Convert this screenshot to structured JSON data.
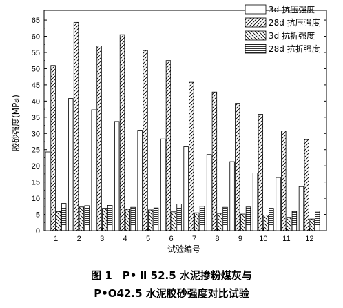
{
  "chart_data": {
    "type": "bar",
    "categories": [
      "1",
      "2",
      "3",
      "4",
      "5",
      "6",
      "7",
      "8",
      "9",
      "10",
      "11",
      "12"
    ],
    "series": [
      {
        "name": "3d 抗压强度",
        "pattern": "none",
        "values": [
          24.3,
          40.8,
          37.3,
          33.7,
          31.0,
          28.3,
          25.9,
          23.5,
          21.3,
          17.8,
          16.4,
          13.6
        ]
      },
      {
        "name": "28d 抗压强度",
        "pattern": "forward-hatch",
        "values": [
          51.0,
          64.3,
          57.0,
          60.5,
          55.6,
          52.5,
          45.8,
          42.8,
          39.3,
          35.9,
          30.8,
          28.1
        ]
      },
      {
        "name": "3d 抗折强度",
        "pattern": "back-hatch",
        "values": [
          5.9,
          7.3,
          6.9,
          6.6,
          6.4,
          5.8,
          5.5,
          5.3,
          5.1,
          4.8,
          4.1,
          3.6
        ]
      },
      {
        "name": "28d 抗折强度",
        "pattern": "horizontal",
        "values": [
          8.4,
          7.7,
          7.8,
          7.2,
          7.0,
          8.2,
          7.5,
          7.2,
          7.3,
          6.9,
          5.9,
          6.0
        ]
      }
    ],
    "ylabel": "胶砂强度(MPa)",
    "xlabel": "试验编号",
    "ylim": [
      0,
      68
    ],
    "yticks": [
      0,
      5,
      10,
      15,
      20,
      25,
      30,
      35,
      40,
      45,
      50,
      55,
      60,
      65
    ],
    "legend_position": "top-right",
    "grid": false
  },
  "caption": {
    "line1": "图 1　P• Ⅱ 52.5 水泥掺粉煤灰与",
    "line2": "P•O42.5 水泥胶砂强度对比试验"
  }
}
